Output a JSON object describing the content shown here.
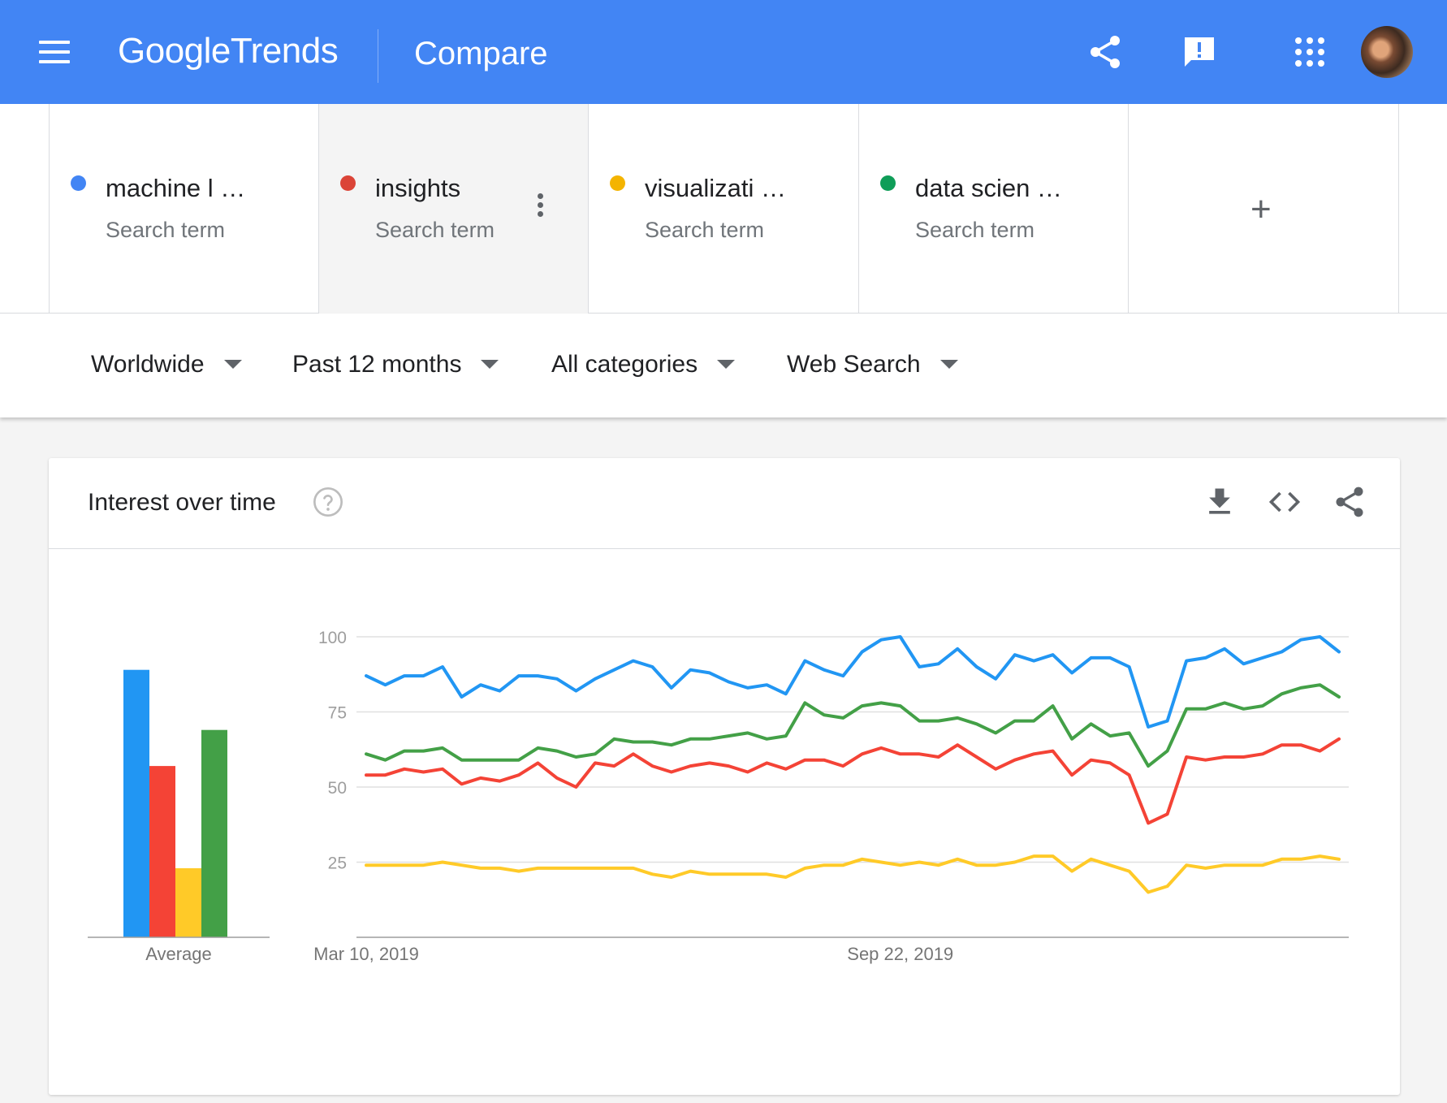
{
  "header": {
    "logo_google": "Google",
    "logo_trends": "Trends",
    "page_title": "Compare",
    "icons": [
      "menu-icon",
      "share-icon",
      "feedback-icon",
      "apps-icon",
      "avatar"
    ]
  },
  "terms": [
    {
      "name": "machine l  …",
      "subtitle": "Search term",
      "color": "#4285f4"
    },
    {
      "name": "insights",
      "subtitle": "Search term",
      "color": "#db4437"
    },
    {
      "name": "visualizati  …",
      "subtitle": "Search term",
      "color": "#f4b400"
    },
    {
      "name": "data scien …",
      "subtitle": "Search term",
      "color": "#0f9d58"
    }
  ],
  "add_term_label": "+",
  "filters": {
    "region": "Worldwide",
    "time": "Past 12 months",
    "category": "All categories",
    "property": "Web Search"
  },
  "card": {
    "title": "Interest over time",
    "icons": [
      "help-icon",
      "download-icon",
      "embed-icon",
      "share-icon"
    ]
  },
  "chart_data": {
    "type": "line",
    "title": "Interest over time",
    "y_ticks": [
      25,
      50,
      75,
      100
    ],
    "ylim": [
      0,
      100
    ],
    "x_tick_labels": [
      "Mar 10, 2019",
      "Sep 22, 2019"
    ],
    "grid": true,
    "average": {
      "label": "Average",
      "values": [
        89,
        57,
        23,
        69
      ]
    },
    "series": [
      {
        "color": "#2196f3",
        "values": [
          87,
          84,
          87,
          87,
          90,
          80,
          84,
          82,
          87,
          87,
          86,
          82,
          86,
          89,
          92,
          90,
          83,
          89,
          88,
          85,
          83,
          84,
          81,
          92,
          89,
          87,
          95,
          99,
          100,
          90,
          91,
          96,
          90,
          86,
          94,
          92,
          94,
          88,
          93,
          93,
          90,
          70,
          72,
          92,
          93,
          96,
          91,
          93,
          95,
          99,
          100,
          95
        ]
      },
      {
        "color": "#f44336",
        "values": [
          54,
          54,
          56,
          55,
          56,
          51,
          53,
          52,
          54,
          58,
          53,
          50,
          58,
          57,
          61,
          57,
          55,
          57,
          58,
          57,
          55,
          58,
          56,
          59,
          59,
          57,
          61,
          63,
          61,
          61,
          60,
          64,
          60,
          56,
          59,
          61,
          62,
          54,
          59,
          58,
          54,
          38,
          41,
          60,
          59,
          60,
          60,
          61,
          64,
          64,
          62,
          66
        ]
      },
      {
        "color": "#ffca28",
        "values": [
          24,
          24,
          24,
          24,
          25,
          24,
          23,
          23,
          22,
          23,
          23,
          23,
          23,
          23,
          23,
          21,
          20,
          22,
          21,
          21,
          21,
          21,
          20,
          23,
          24,
          24,
          26,
          25,
          24,
          25,
          24,
          26,
          24,
          24,
          25,
          27,
          27,
          22,
          26,
          24,
          22,
          15,
          17,
          24,
          23,
          24,
          24,
          24,
          26,
          26,
          27,
          26
        ]
      },
      {
        "color": "#43a047",
        "values": [
          61,
          59,
          62,
          62,
          63,
          59,
          59,
          59,
          59,
          63,
          62,
          60,
          61,
          66,
          65,
          65,
          64,
          66,
          66,
          67,
          68,
          66,
          67,
          78,
          74,
          73,
          77,
          78,
          77,
          72,
          72,
          73,
          71,
          68,
          72,
          72,
          77,
          66,
          71,
          67,
          68,
          57,
          62,
          76,
          76,
          78,
          76,
          77,
          81,
          83,
          84,
          80
        ]
      }
    ]
  }
}
